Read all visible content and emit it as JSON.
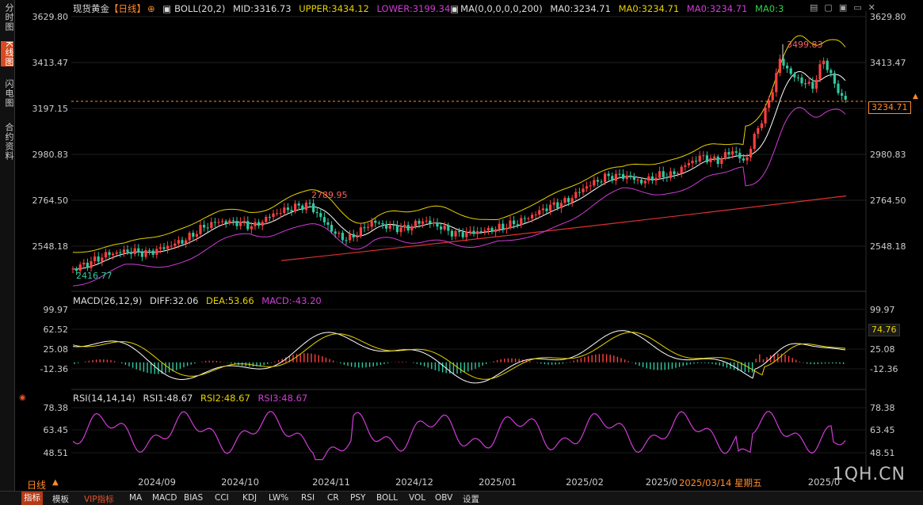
{
  "left_tabs": [
    {
      "label": "分时图",
      "active": false
    },
    {
      "label": "K线图",
      "active": true
    },
    {
      "label": "闪电图",
      "active": false
    },
    {
      "label": "合约资料",
      "active": false
    }
  ],
  "main_legend": {
    "symbol": "现货黄金",
    "period": "【日线】",
    "boll": "BOLL(20,2)",
    "mid": "MID:3316.73",
    "upper": "UPPER:3434.12",
    "lower": "LOWER:3199.34",
    "ma": "MA(0,0,0,0,0,200)",
    "ma0a": "MA0:3234.71",
    "ma0b": "MA0:3234.71",
    "ma0c": "MA0:3234.71",
    "ma0d": "MA0:3"
  },
  "macd_legend": {
    "name": "MACD(26,12,9)",
    "diff": "DIFF:32.06",
    "dea": "DEA:53.66",
    "macd": "MACD:-43.20"
  },
  "rsi_legend": {
    "name": "RSI(14,14,14)",
    "rsi1": "RSI1:48.67",
    "rsi2": "RSI2:48.67",
    "rsi3": "RSI3:48.67"
  },
  "price_axis_labels": [
    "3629.80",
    "3413.47",
    "3197.15",
    "2980.83",
    "2764.50",
    "2548.18"
  ],
  "macd_axis_labels": [
    "99.97",
    "62.52",
    "25.08",
    "-12.36"
  ],
  "rsi_axis_labels": [
    "78.38",
    "63.45",
    "48.51"
  ],
  "current_price_label": "3234.71",
  "macd_current_label": "74.76",
  "annotations": {
    "high": "3499.83",
    "mid_high": "2789.95",
    "low": "2416.77"
  },
  "date_labels": [
    "2024/09",
    "2024/10",
    "2024/11",
    "2024/12",
    "2025/01",
    "2025/02",
    "2025/0",
    "2025/0"
  ],
  "crosshair_date": "2025/03/14 星期五",
  "period_label": "日线",
  "bottom_tabs": [
    "指标",
    "模板",
    "VIP指标",
    "MA",
    "MACD",
    "BIAS",
    "CCI",
    "KDJ",
    "LW%",
    "RSI",
    "CR",
    "PSY",
    "BOLL",
    "VOL",
    "OBV",
    "设置"
  ],
  "watermark": "1QH.CN",
  "colors": {
    "up": "#ff4040",
    "down": "#2fc9a0",
    "boll_upper": "#e6d200",
    "boll_mid": "#ffffff",
    "boll_lower": "#d13cd8",
    "ma200": "#e03030",
    "dea": "#e6d200",
    "rsi": "#d13cd8",
    "accent": "#ff8a2a"
  },
  "chart_data": [
    {
      "type": "candlestick",
      "title": "现货黄金 日线",
      "price_range": [
        2416.77,
        3499.83
      ],
      "ylim": [
        2430,
        3629.8
      ],
      "key_prices": {
        "high": 3499.83,
        "local_high": 2789.95,
        "low": 2416.77,
        "last": 3234.71
      },
      "overlays": [
        "BOLL upper",
        "BOLL mid",
        "BOLL lower",
        "MA200"
      ],
      "x_range": [
        "2024/08",
        "2025/05"
      ]
    },
    {
      "type": "bar",
      "name": "MACD(26,12,9)",
      "lines": {
        "DIFF": 32.06,
        "DEA": 53.66
      },
      "histogram_last": -43.2,
      "ylim": [
        -12.36,
        99.97
      ]
    },
    {
      "type": "line",
      "name": "RSI(14,14,14)",
      "last": 48.67,
      "ylim": [
        48.51,
        78.38
      ]
    }
  ]
}
